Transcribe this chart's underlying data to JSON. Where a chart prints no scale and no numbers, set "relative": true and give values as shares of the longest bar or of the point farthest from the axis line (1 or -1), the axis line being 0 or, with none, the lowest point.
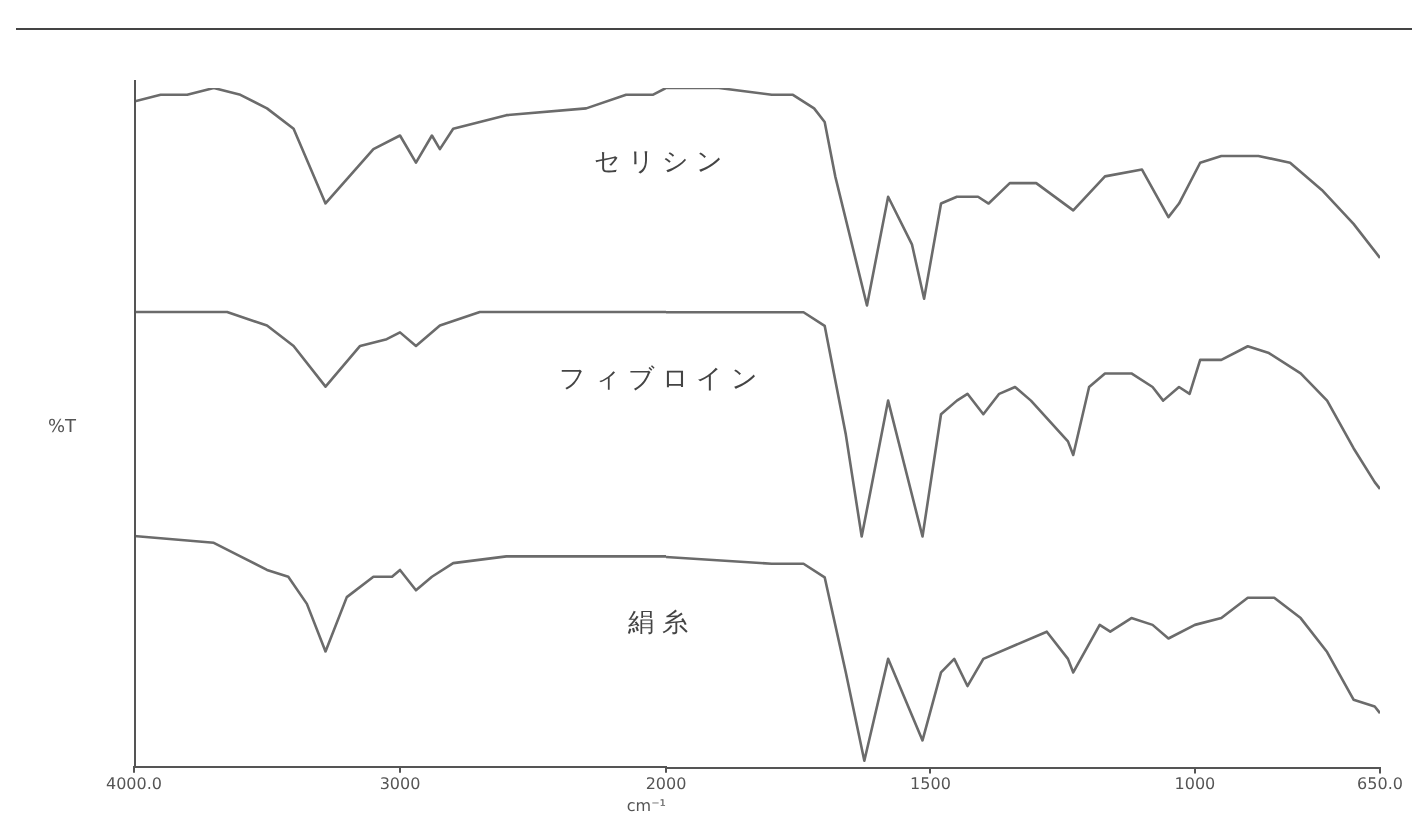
{
  "chart_data": [
    {
      "type": "line",
      "relative": true,
      "ylabel": "%T",
      "xlim": [
        4000,
        2000
      ],
      "xticks": [
        {
          "value": 4000,
          "label": "4000.0"
        },
        3000,
        2000
      ],
      "grid": false,
      "legend": false,
      "marker": "none",
      "line_style": "solid",
      "series": [
        {
          "name": "セリシン",
          "color": "#6b6b6b",
          "x": [
            4000,
            3900,
            3800,
            3700,
            3600,
            3500,
            3400,
            3280,
            3100,
            3000,
            2940,
            2880,
            2850,
            2800,
            2600,
            2300,
            2150,
            2050,
            2000
          ],
          "values": [
            0.98,
            0.99,
            0.99,
            1.0,
            0.99,
            0.97,
            0.94,
            0.83,
            0.91,
            0.93,
            0.89,
            0.93,
            0.91,
            0.94,
            0.96,
            0.97,
            0.99,
            0.99,
            1.0
          ]
        },
        {
          "name": "フィブロイン",
          "color": "#6b6b6b",
          "x": [
            4000,
            3650,
            3500,
            3400,
            3280,
            3150,
            3050,
            3000,
            2940,
            2850,
            2700,
            2400,
            2000
          ],
          "values": [
            0.67,
            0.67,
            0.65,
            0.62,
            0.56,
            0.62,
            0.63,
            0.64,
            0.62,
            0.65,
            0.67,
            0.67,
            0.67
          ]
        },
        {
          "name": "絹糸",
          "color": "#6b6b6b",
          "x": [
            4000,
            3700,
            3600,
            3500,
            3420,
            3350,
            3280,
            3200,
            3100,
            3030,
            3000,
            2940,
            2880,
            2800,
            2600,
            2000
          ],
          "values": [
            0.34,
            0.33,
            0.31,
            0.29,
            0.28,
            0.24,
            0.17,
            0.25,
            0.28,
            0.28,
            0.29,
            0.26,
            0.28,
            0.3,
            0.31,
            0.31
          ]
        }
      ]
    },
    {
      "type": "line",
      "relative": true,
      "xlabel": "cm⁻¹",
      "xlim": [
        2000,
        650
      ],
      "xticks": [
        1500,
        1000,
        {
          "value": 650,
          "label": "650.0"
        }
      ],
      "grid": false,
      "legend": false,
      "marker": "none",
      "line_style": "solid",
      "series": [
        {
          "color": "#6b6b6b",
          "x": [
            2000,
            1900,
            1800,
            1760,
            1720,
            1700,
            1680,
            1620,
            1580,
            1535,
            1512,
            1480,
            1450,
            1410,
            1390,
            1350,
            1300,
            1230,
            1170,
            1100,
            1050,
            1030,
            990,
            950,
            880,
            820,
            760,
            700,
            650
          ],
          "values": [
            1.0,
            1.0,
            0.99,
            0.99,
            0.97,
            0.95,
            0.87,
            0.68,
            0.84,
            0.77,
            0.69,
            0.83,
            0.84,
            0.84,
            0.83,
            0.86,
            0.86,
            0.82,
            0.87,
            0.88,
            0.81,
            0.83,
            0.89,
            0.9,
            0.9,
            0.89,
            0.85,
            0.8,
            0.75
          ]
        },
        {
          "color": "#6b6b6b",
          "x": [
            2000,
            1800,
            1740,
            1700,
            1660,
            1630,
            1580,
            1515,
            1480,
            1450,
            1430,
            1400,
            1370,
            1340,
            1310,
            1240,
            1230,
            1200,
            1170,
            1120,
            1080,
            1060,
            1030,
            1010,
            990,
            950,
            900,
            860,
            800,
            750,
            700,
            660,
            650
          ],
          "values": [
            0.67,
            0.67,
            0.67,
            0.65,
            0.49,
            0.34,
            0.54,
            0.34,
            0.52,
            0.54,
            0.55,
            0.52,
            0.55,
            0.56,
            0.54,
            0.48,
            0.46,
            0.56,
            0.58,
            0.58,
            0.56,
            0.54,
            0.56,
            0.55,
            0.6,
            0.6,
            0.62,
            0.61,
            0.58,
            0.54,
            0.47,
            0.42,
            0.41
          ]
        },
        {
          "color": "#6b6b6b",
          "x": [
            2000,
            1800,
            1740,
            1700,
            1660,
            1625,
            1580,
            1515,
            1480,
            1455,
            1430,
            1400,
            1340,
            1280,
            1240,
            1230,
            1180,
            1160,
            1120,
            1080,
            1050,
            1000,
            950,
            900,
            850,
            800,
            750,
            700,
            660,
            650
          ],
          "values": [
            0.31,
            0.3,
            0.3,
            0.28,
            0.14,
            0.01,
            0.16,
            0.04,
            0.14,
            0.16,
            0.12,
            0.16,
            0.18,
            0.2,
            0.16,
            0.14,
            0.21,
            0.2,
            0.22,
            0.21,
            0.19,
            0.21,
            0.22,
            0.25,
            0.25,
            0.22,
            0.17,
            0.1,
            0.09,
            0.08
          ]
        }
      ]
    }
  ]
}
